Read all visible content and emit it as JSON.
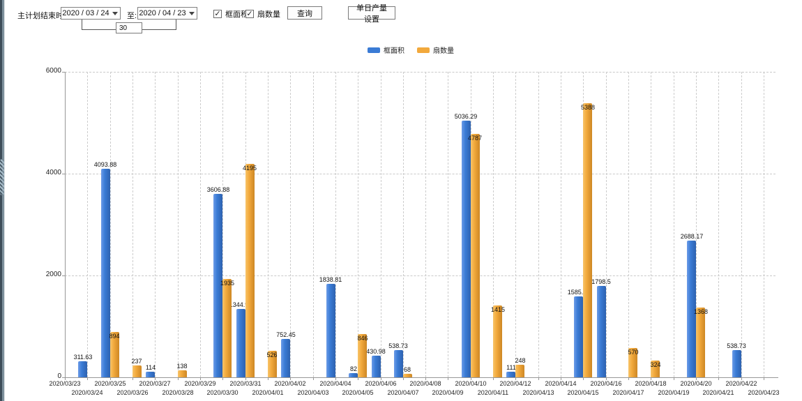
{
  "toolbar": {
    "plan_end_label": "主计划结束时间:",
    "date_from": "2020 / 03 / 24",
    "to_label": "至:",
    "date_to": "2020 / 04 / 23",
    "interval_days": "30",
    "checkbox_frame_area": "框面积",
    "checkbox_fan_count": "扇数量",
    "query_button": "查询",
    "daily_output_button": "单日产量设置"
  },
  "chart_data": {
    "type": "bar",
    "title": "",
    "xlabel": "",
    "ylabel": "",
    "ylim": [
      0,
      6000
    ],
    "yticks": [
      0,
      2000,
      4000,
      6000
    ],
    "grid": "dashed",
    "legend_position": "top-center",
    "categories": [
      "2020/03/23",
      "2020/03/24",
      "2020/03/25",
      "2020/03/26",
      "2020/03/27",
      "2020/03/28",
      "2020/03/29",
      "2020/03/30",
      "2020/03/31",
      "2020/04/01",
      "2020/04/02",
      "2020/04/03",
      "2020/04/04",
      "2020/04/05",
      "2020/04/06",
      "2020/04/07",
      "2020/04/08",
      "2020/04/09",
      "2020/04/10",
      "2020/04/11",
      "2020/04/12",
      "2020/04/13",
      "2020/04/14",
      "2020/04/15",
      "2020/04/16",
      "2020/04/17",
      "2020/04/18",
      "2020/04/19",
      "2020/04/20",
      "2020/04/21",
      "2020/04/22",
      "2020/04/23"
    ],
    "series": [
      {
        "name": "框面积",
        "color": "#3a7bd5",
        "values": [
          null,
          311.63,
          4093.88,
          null,
          114,
          null,
          null,
          3606.88,
          1344.95,
          null,
          752.45,
          null,
          1838.81,
          82,
          430.98,
          538.73,
          null,
          null,
          5036.29,
          null,
          111,
          null,
          null,
          1585.96,
          1798.5,
          null,
          null,
          null,
          2688.17,
          null,
          538.73,
          null
        ]
      },
      {
        "name": "扇数量",
        "color": "#f2a93c",
        "values": [
          null,
          null,
          894,
          237,
          null,
          138,
          null,
          1935,
          4195,
          526,
          null,
          null,
          null,
          846,
          null,
          68,
          null,
          null,
          4787,
          1415,
          248,
          null,
          null,
          5388,
          null,
          570,
          324,
          null,
          1368,
          null,
          null,
          null
        ]
      }
    ]
  }
}
